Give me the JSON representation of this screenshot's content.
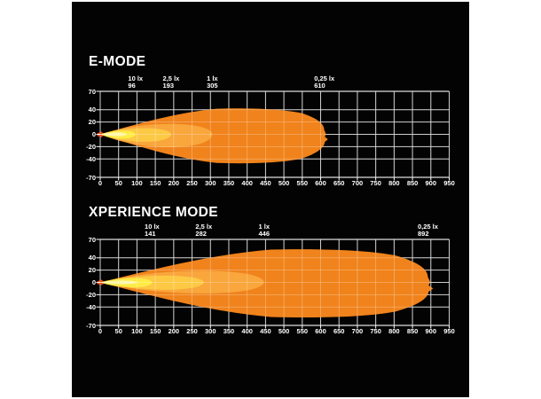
{
  "figure": {
    "background_color": "#ffffff",
    "panel_color": "#030303",
    "grid_color": "#bdbdbd",
    "grid_overlay_color": "rgba(255,255,255,0.33)",
    "frame_color": "#dddddd",
    "tick_color": "#ffffff",
    "text_color": "#ffffff",
    "origin_flare_color": "#e2491b"
  },
  "chart_data": [
    {
      "type": "area",
      "title": "E-MODE",
      "xlim": [
        0,
        950
      ],
      "ylim": [
        -70,
        70
      ],
      "x_ticks": [
        0,
        50,
        100,
        150,
        200,
        250,
        300,
        350,
        400,
        450,
        500,
        550,
        600,
        650,
        700,
        750,
        800,
        850,
        900,
        950
      ],
      "y_ticks": [
        70,
        40,
        20,
        0,
        -20,
        -40,
        -70
      ],
      "grid": true,
      "zones": [
        {
          "lux": "0,25 lx",
          "distance": 610,
          "half_top": 43,
          "half_bottom": 48,
          "color": "#F0831C"
        },
        {
          "lux": "1 lx",
          "distance": 305,
          "half_top": 17,
          "half_bottom": 21,
          "color": "#F9A63C"
        },
        {
          "lux": "2,5 lx",
          "distance": 193,
          "half_top": 10,
          "half_bottom": 12,
          "color": "#FDC945"
        },
        {
          "lux": "10 lx",
          "distance": 96,
          "half_top": 6,
          "half_bottom": 7,
          "color": "#FFEC44"
        }
      ],
      "hotspot": {
        "distance": 72,
        "half": 3,
        "color": "#FFF6A6"
      }
    },
    {
      "type": "area",
      "title": "XPERIENCE MODE",
      "xlim": [
        0,
        950
      ],
      "ylim": [
        -70,
        70
      ],
      "x_ticks": [
        0,
        50,
        100,
        150,
        200,
        250,
        300,
        350,
        400,
        450,
        500,
        550,
        600,
        650,
        700,
        750,
        800,
        850,
        900,
        950
      ],
      "y_ticks": [
        70,
        40,
        20,
        0,
        -20,
        -40,
        -70
      ],
      "grid": true,
      "zones": [
        {
          "lux": "0,25 lx",
          "distance": 892,
          "half_top": 55,
          "half_bottom": 58,
          "color": "#F0831C"
        },
        {
          "lux": "1 lx",
          "distance": 446,
          "half_top": 19,
          "half_bottom": 18,
          "color": "#F9A63C"
        },
        {
          "lux": "2,5 lx",
          "distance": 282,
          "half_top": 11,
          "half_bottom": 12,
          "color": "#FDC945"
        },
        {
          "lux": "10 lx",
          "distance": 141,
          "half_top": 7,
          "half_bottom": 8,
          "color": "#FFEC44"
        }
      ],
      "hotspot": {
        "distance": 100,
        "half": 3,
        "color": "#FFF6A6"
      }
    }
  ]
}
